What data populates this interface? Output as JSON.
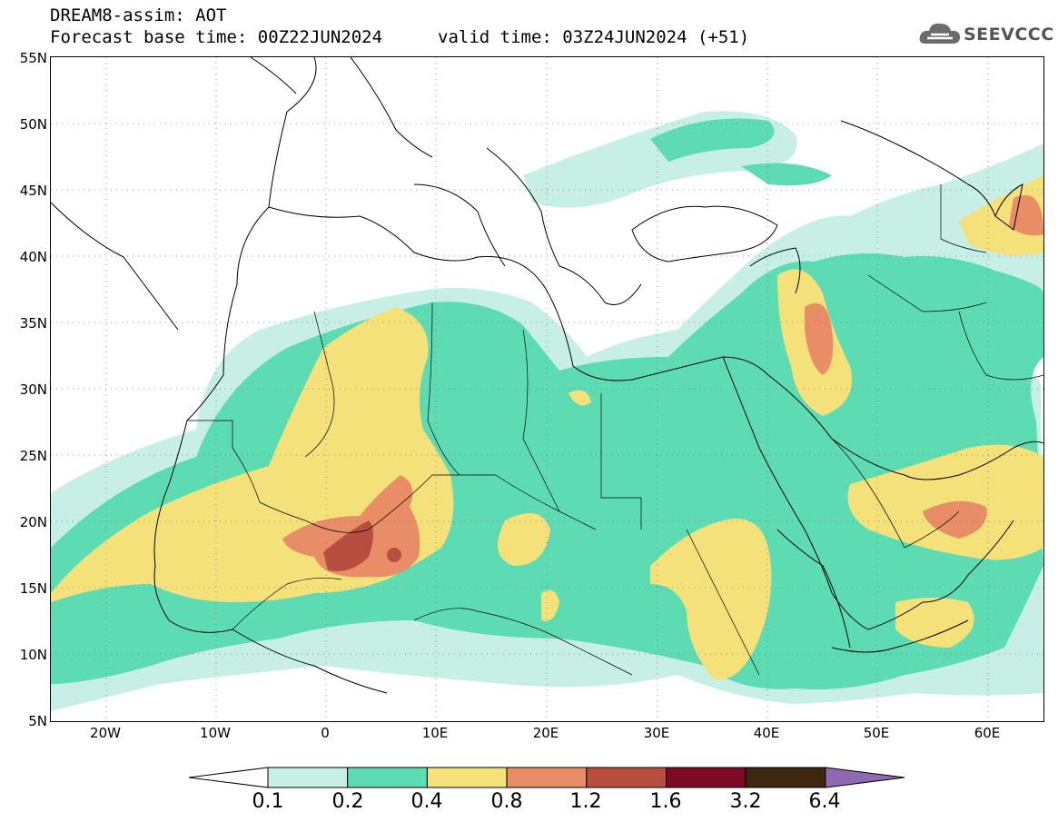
{
  "header": {
    "line1": "DREAM8-assim: AOT",
    "line2": "Forecast base time: 00Z22JUN2024",
    "line3": "valid time: 03Z24JUN2024 (+51)"
  },
  "logo": {
    "text": "SEEVCCC",
    "icon": "cloud-icon"
  },
  "map": {
    "lon_range": [
      -25,
      65
    ],
    "lat_range": [
      5,
      55
    ],
    "y_ticks": [
      "55N",
      "50N",
      "45N",
      "40N",
      "35N",
      "30N",
      "25N",
      "20N",
      "15N",
      "10N",
      "5N"
    ],
    "x_ticks": [
      "20W",
      "10W",
      "0",
      "10E",
      "20E",
      "30E",
      "40E",
      "50E",
      "60E"
    ],
    "gridlines": "dotted"
  },
  "legend": {
    "levels": [
      "0.1",
      "0.2",
      "0.4",
      "0.8",
      "1.2",
      "1.6",
      "3.2",
      "6.4"
    ],
    "colors": [
      "#c7efe6",
      "#5ddbb3",
      "#f5e17a",
      "#e88d66",
      "#b84e3f",
      "#7e0a26",
      "#3e2711",
      "#8f6ab2"
    ],
    "below_color": "#ffffff"
  },
  "colors": {
    "c01": "#c7efe6",
    "c02": "#5ddbb3",
    "c04": "#f5e17a",
    "c08": "#e88d66",
    "c12": "#b84e3f",
    "line": "#000000"
  }
}
